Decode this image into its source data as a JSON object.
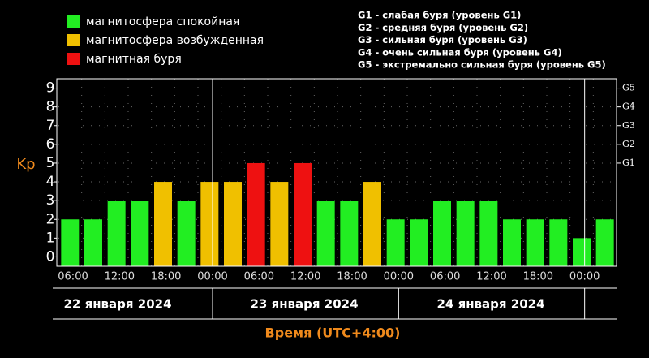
{
  "chart_data": {
    "type": "bar",
    "legend": [
      {
        "label": "магнитосфера спокойная",
        "color": "#22ee22"
      },
      {
        "label": "магнитосфера возбужденная",
        "color": "#f0c000"
      },
      {
        "label": "магнитная буря",
        "color": "#ee1111"
      }
    ],
    "storm_levels": [
      "G1 - слабая буря (уровень G1)",
      "G2 - средняя буря (уровень G2)",
      "G3 - сильная буря (уровень G3)",
      "G4 - очень сильная буря (уровень G4)",
      "G5 - экстремально сильная буря (уровень G5)"
    ],
    "ylabel": "Kp",
    "xlabel": "Время (UTC+4:00)",
    "categories": [
      null,
      null,
      null,
      null,
      null,
      null,
      null,
      null,
      null,
      null,
      null,
      null,
      null,
      null,
      null,
      null,
      null,
      null,
      null,
      null,
      null,
      null,
      null,
      null
    ],
    "values": [
      2,
      2,
      3,
      3,
      4,
      3,
      4,
      4,
      5,
      4,
      5,
      3,
      3,
      4,
      2,
      2,
      3,
      3,
      3,
      2,
      2,
      2,
      1,
      2
    ],
    "time_labels": [
      "06:00",
      "12:00",
      "18:00",
      "00:00",
      "06:00",
      "12:00",
      "18:00",
      "00:00",
      "06:00",
      "12:00",
      "18:00",
      "00:00"
    ],
    "dates": [
      "22 января 2024",
      "23 января 2024",
      "24 января 2024"
    ],
    "ylim": [
      -0.5,
      9.5
    ],
    "yticks": [
      0,
      1,
      2,
      3,
      4,
      5,
      6,
      7,
      8,
      9
    ],
    "y2ticks": [
      {
        "value": 5,
        "label": "G1"
      },
      {
        "value": 6,
        "label": "G2"
      },
      {
        "value": 7,
        "label": "G3"
      },
      {
        "value": 8,
        "label": "G4"
      },
      {
        "value": 9,
        "label": "G5"
      }
    ],
    "grid": true
  }
}
